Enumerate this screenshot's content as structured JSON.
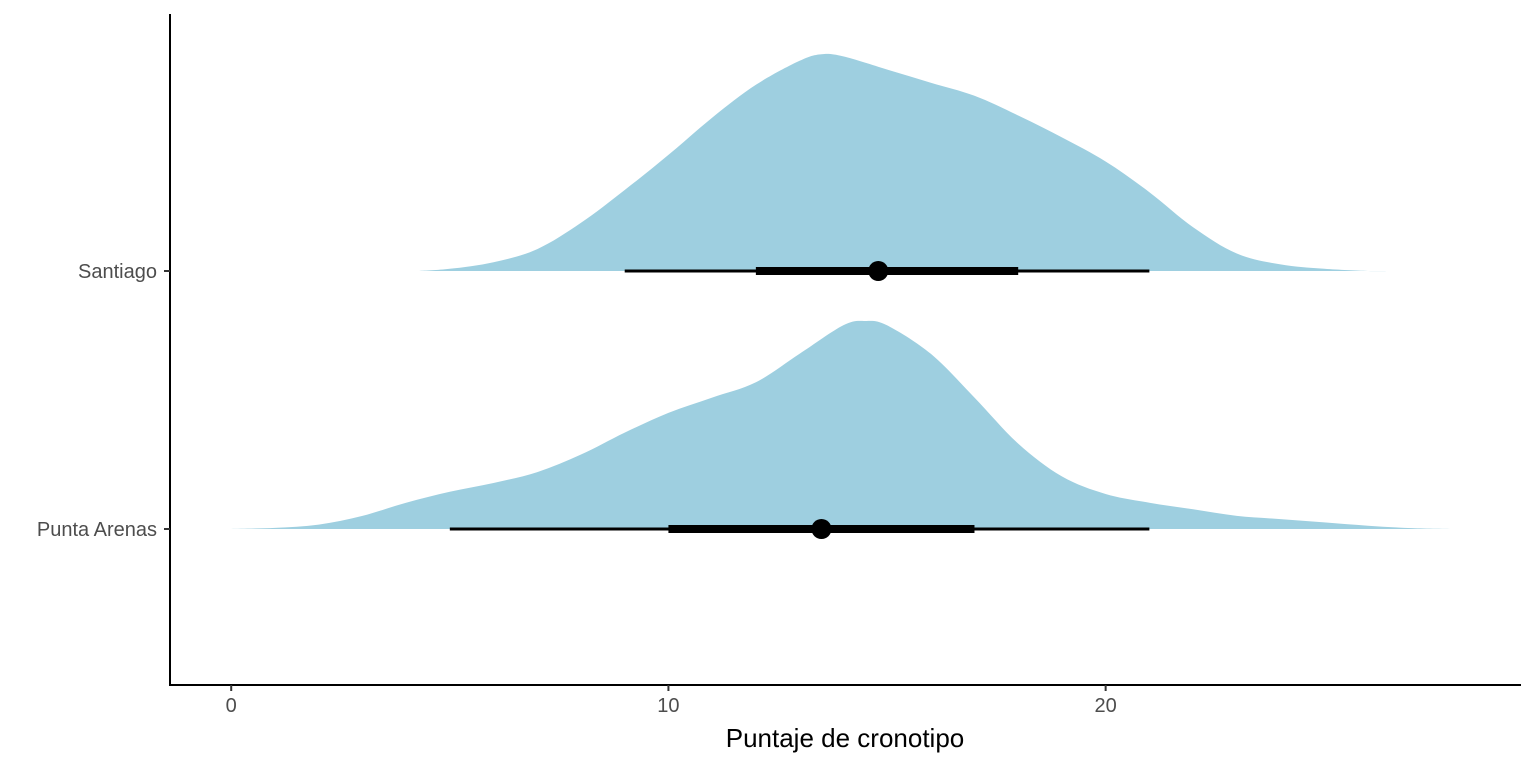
{
  "chart_data": {
    "type": "halfeye",
    "title": "",
    "xlabel": "Puntaje de cronotipo",
    "ylabel": "",
    "xlim": [
      -1.4,
      29.5
    ],
    "xticks": [
      0,
      10,
      20
    ],
    "categories": [
      "Santiago",
      "Punta Arenas"
    ],
    "fill_color": "#9ecfe0",
    "interval_color": "#000000",
    "series": [
      {
        "name": "Santiago",
        "point": 14.8,
        "interval_66": [
          12.0,
          18.0
        ],
        "interval_95": [
          9.0,
          21.0
        ],
        "density": {
          "x": [
            4.3,
            5,
            6,
            7,
            8,
            9,
            10,
            11,
            12,
            13,
            13.5,
            14,
            15,
            16,
            17,
            18,
            19,
            20,
            21,
            22,
            23,
            24,
            25,
            26,
            26.5
          ],
          "y": [
            0.0,
            0.01,
            0.04,
            0.1,
            0.22,
            0.37,
            0.53,
            0.7,
            0.85,
            0.96,
            0.99,
            0.98,
            0.92,
            0.86,
            0.8,
            0.71,
            0.61,
            0.5,
            0.36,
            0.2,
            0.08,
            0.03,
            0.01,
            0.0,
            0.0
          ]
        }
      },
      {
        "name": "Punta Arenas",
        "point": 13.5,
        "interval_66": [
          10.0,
          17.0
        ],
        "interval_95": [
          5.0,
          21.0
        ],
        "density": {
          "x": [
            0,
            1,
            2,
            3,
            4,
            5,
            6,
            7,
            8,
            9,
            10,
            11,
            12,
            13,
            14,
            14.5,
            15,
            16,
            17,
            18,
            19,
            20,
            21,
            22,
            23,
            24,
            25,
            26,
            27,
            28
          ],
          "y": [
            0.0,
            0.005,
            0.02,
            0.06,
            0.12,
            0.17,
            0.21,
            0.26,
            0.34,
            0.44,
            0.53,
            0.6,
            0.67,
            0.8,
            0.93,
            0.95,
            0.93,
            0.8,
            0.6,
            0.39,
            0.24,
            0.16,
            0.12,
            0.09,
            0.06,
            0.045,
            0.03,
            0.015,
            0.004,
            0.0
          ]
        }
      }
    ]
  }
}
